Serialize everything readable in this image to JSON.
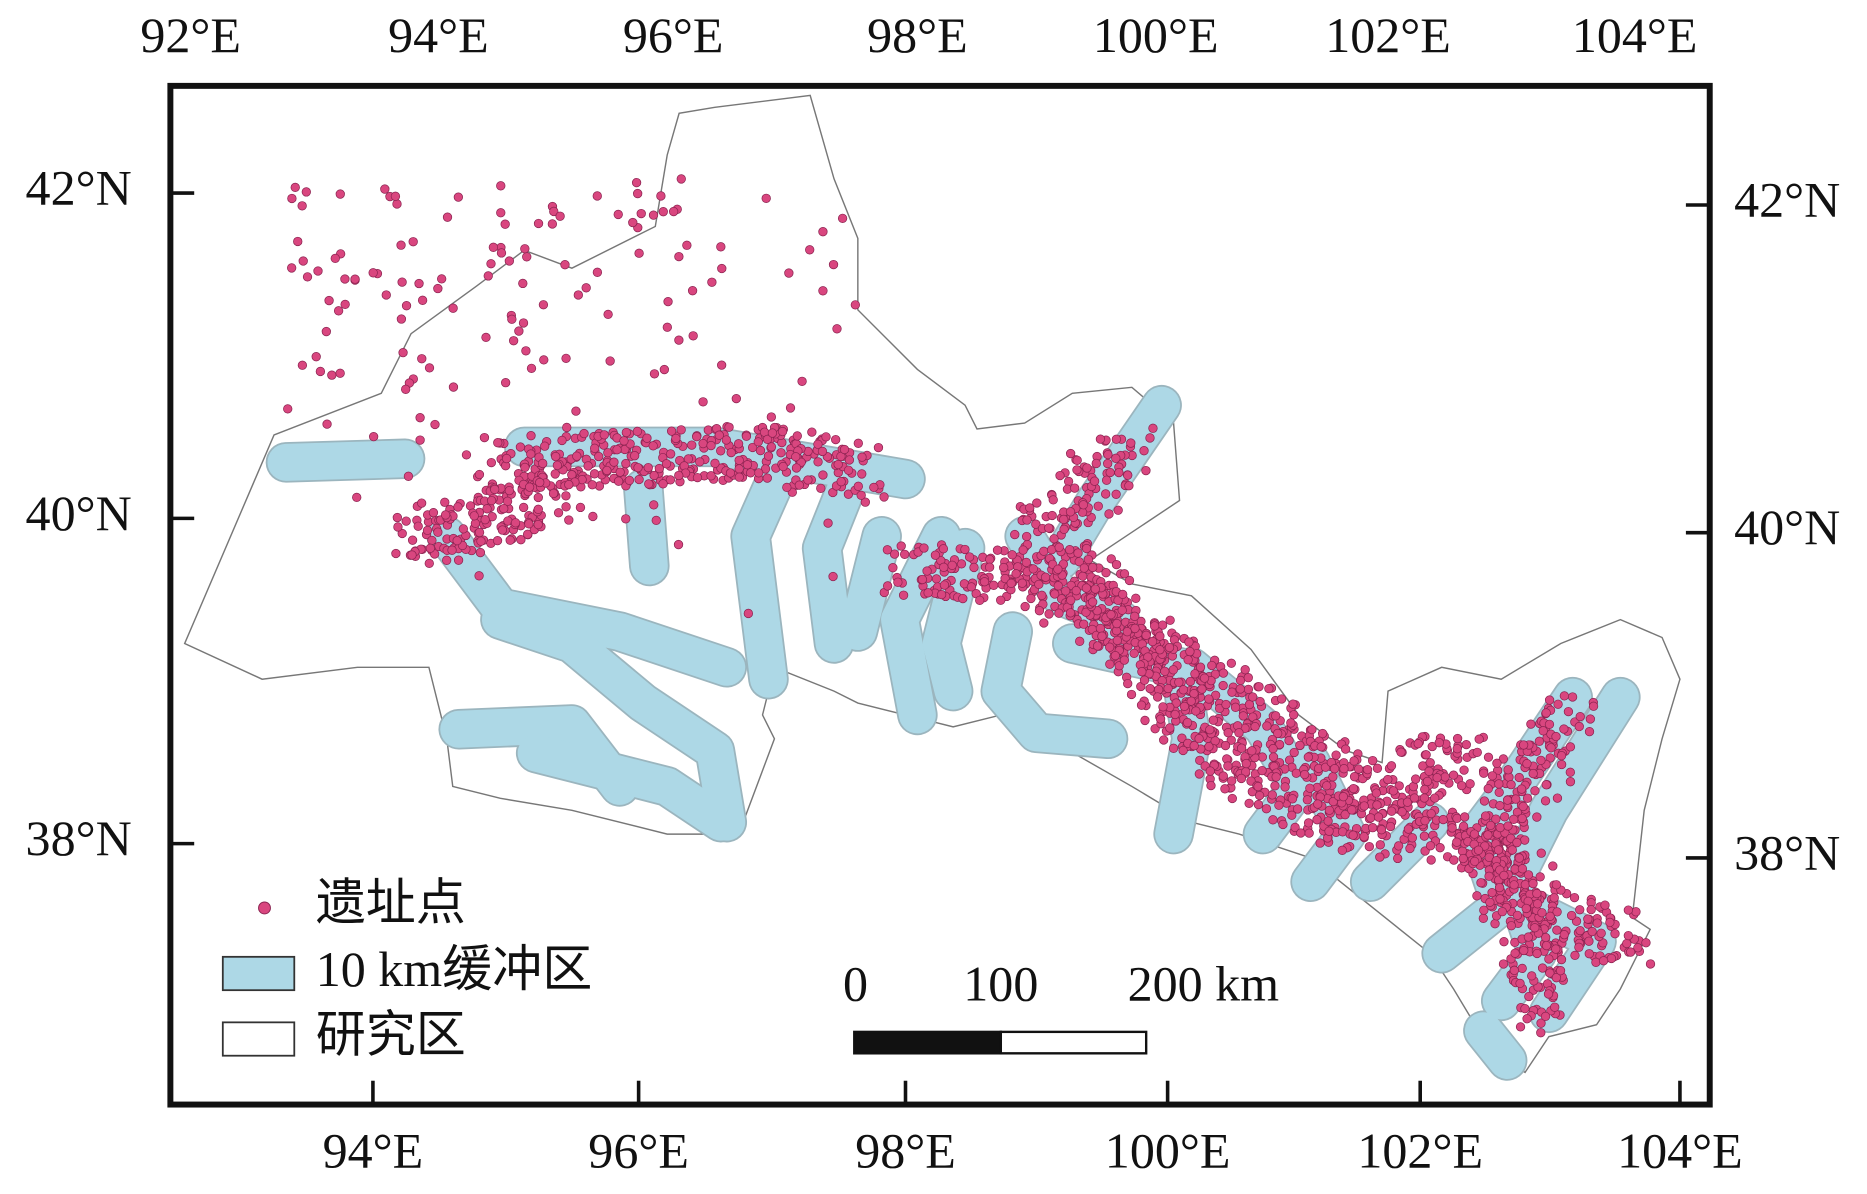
{
  "map": {
    "top_axis_labels": [
      "92°E",
      "94°E",
      "96°E",
      "98°E",
      "100°E",
      "102°E",
      "104°E"
    ],
    "bottom_axis_labels": [
      "94°E",
      "96°E",
      "98°E",
      "100°E",
      "102°E",
      "104°E"
    ],
    "left_axis_labels": [
      "42°N",
      "40°N",
      "38°N"
    ],
    "right_axis_labels": [
      "42°N",
      "40°N",
      "38°N"
    ],
    "legend": [
      "遗址点",
      "10 km缓冲区",
      "研究区"
    ],
    "scale_bar": [
      "0",
      "100",
      "200 km"
    ]
  }
}
